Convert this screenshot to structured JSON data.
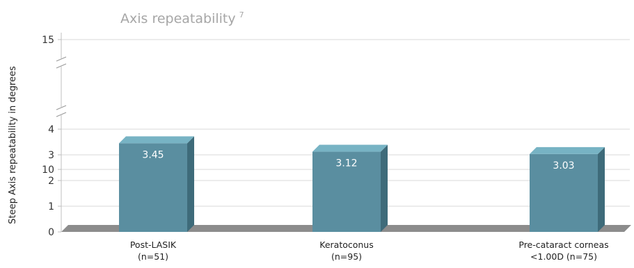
{
  "chart_data": {
    "type": "bar",
    "title": "Axis repeatability",
    "title_superscript": "7",
    "ylabel": "Steep Axis repeatability in degrees",
    "xlabel": "",
    "categories": [
      [
        "Post-LASIK",
        "(n=51)"
      ],
      [
        "Keratoconus",
        "(n=95)"
      ],
      [
        "Pre-cataract corneas",
        "<1.00D (n=75)"
      ]
    ],
    "values": [
      3.45,
      3.12,
      3.03
    ],
    "value_labels": [
      "3.45",
      "3.12",
      "3.03"
    ],
    "y_ticks": [
      "0",
      "1",
      "2",
      "3",
      "4",
      "10",
      "15"
    ],
    "ylim": [
      0,
      15
    ],
    "axis_breaks": [
      [
        4,
        10
      ],
      [
        10,
        15
      ]
    ],
    "grid": true,
    "legend": "none",
    "style": "3d",
    "colors": {
      "bar_front": "#5a8ea0",
      "bar_top": "#77b3c4",
      "bar_side": "#3e6b7a",
      "floor": "#8c8c8c",
      "title": "#a6a6a6"
    }
  }
}
